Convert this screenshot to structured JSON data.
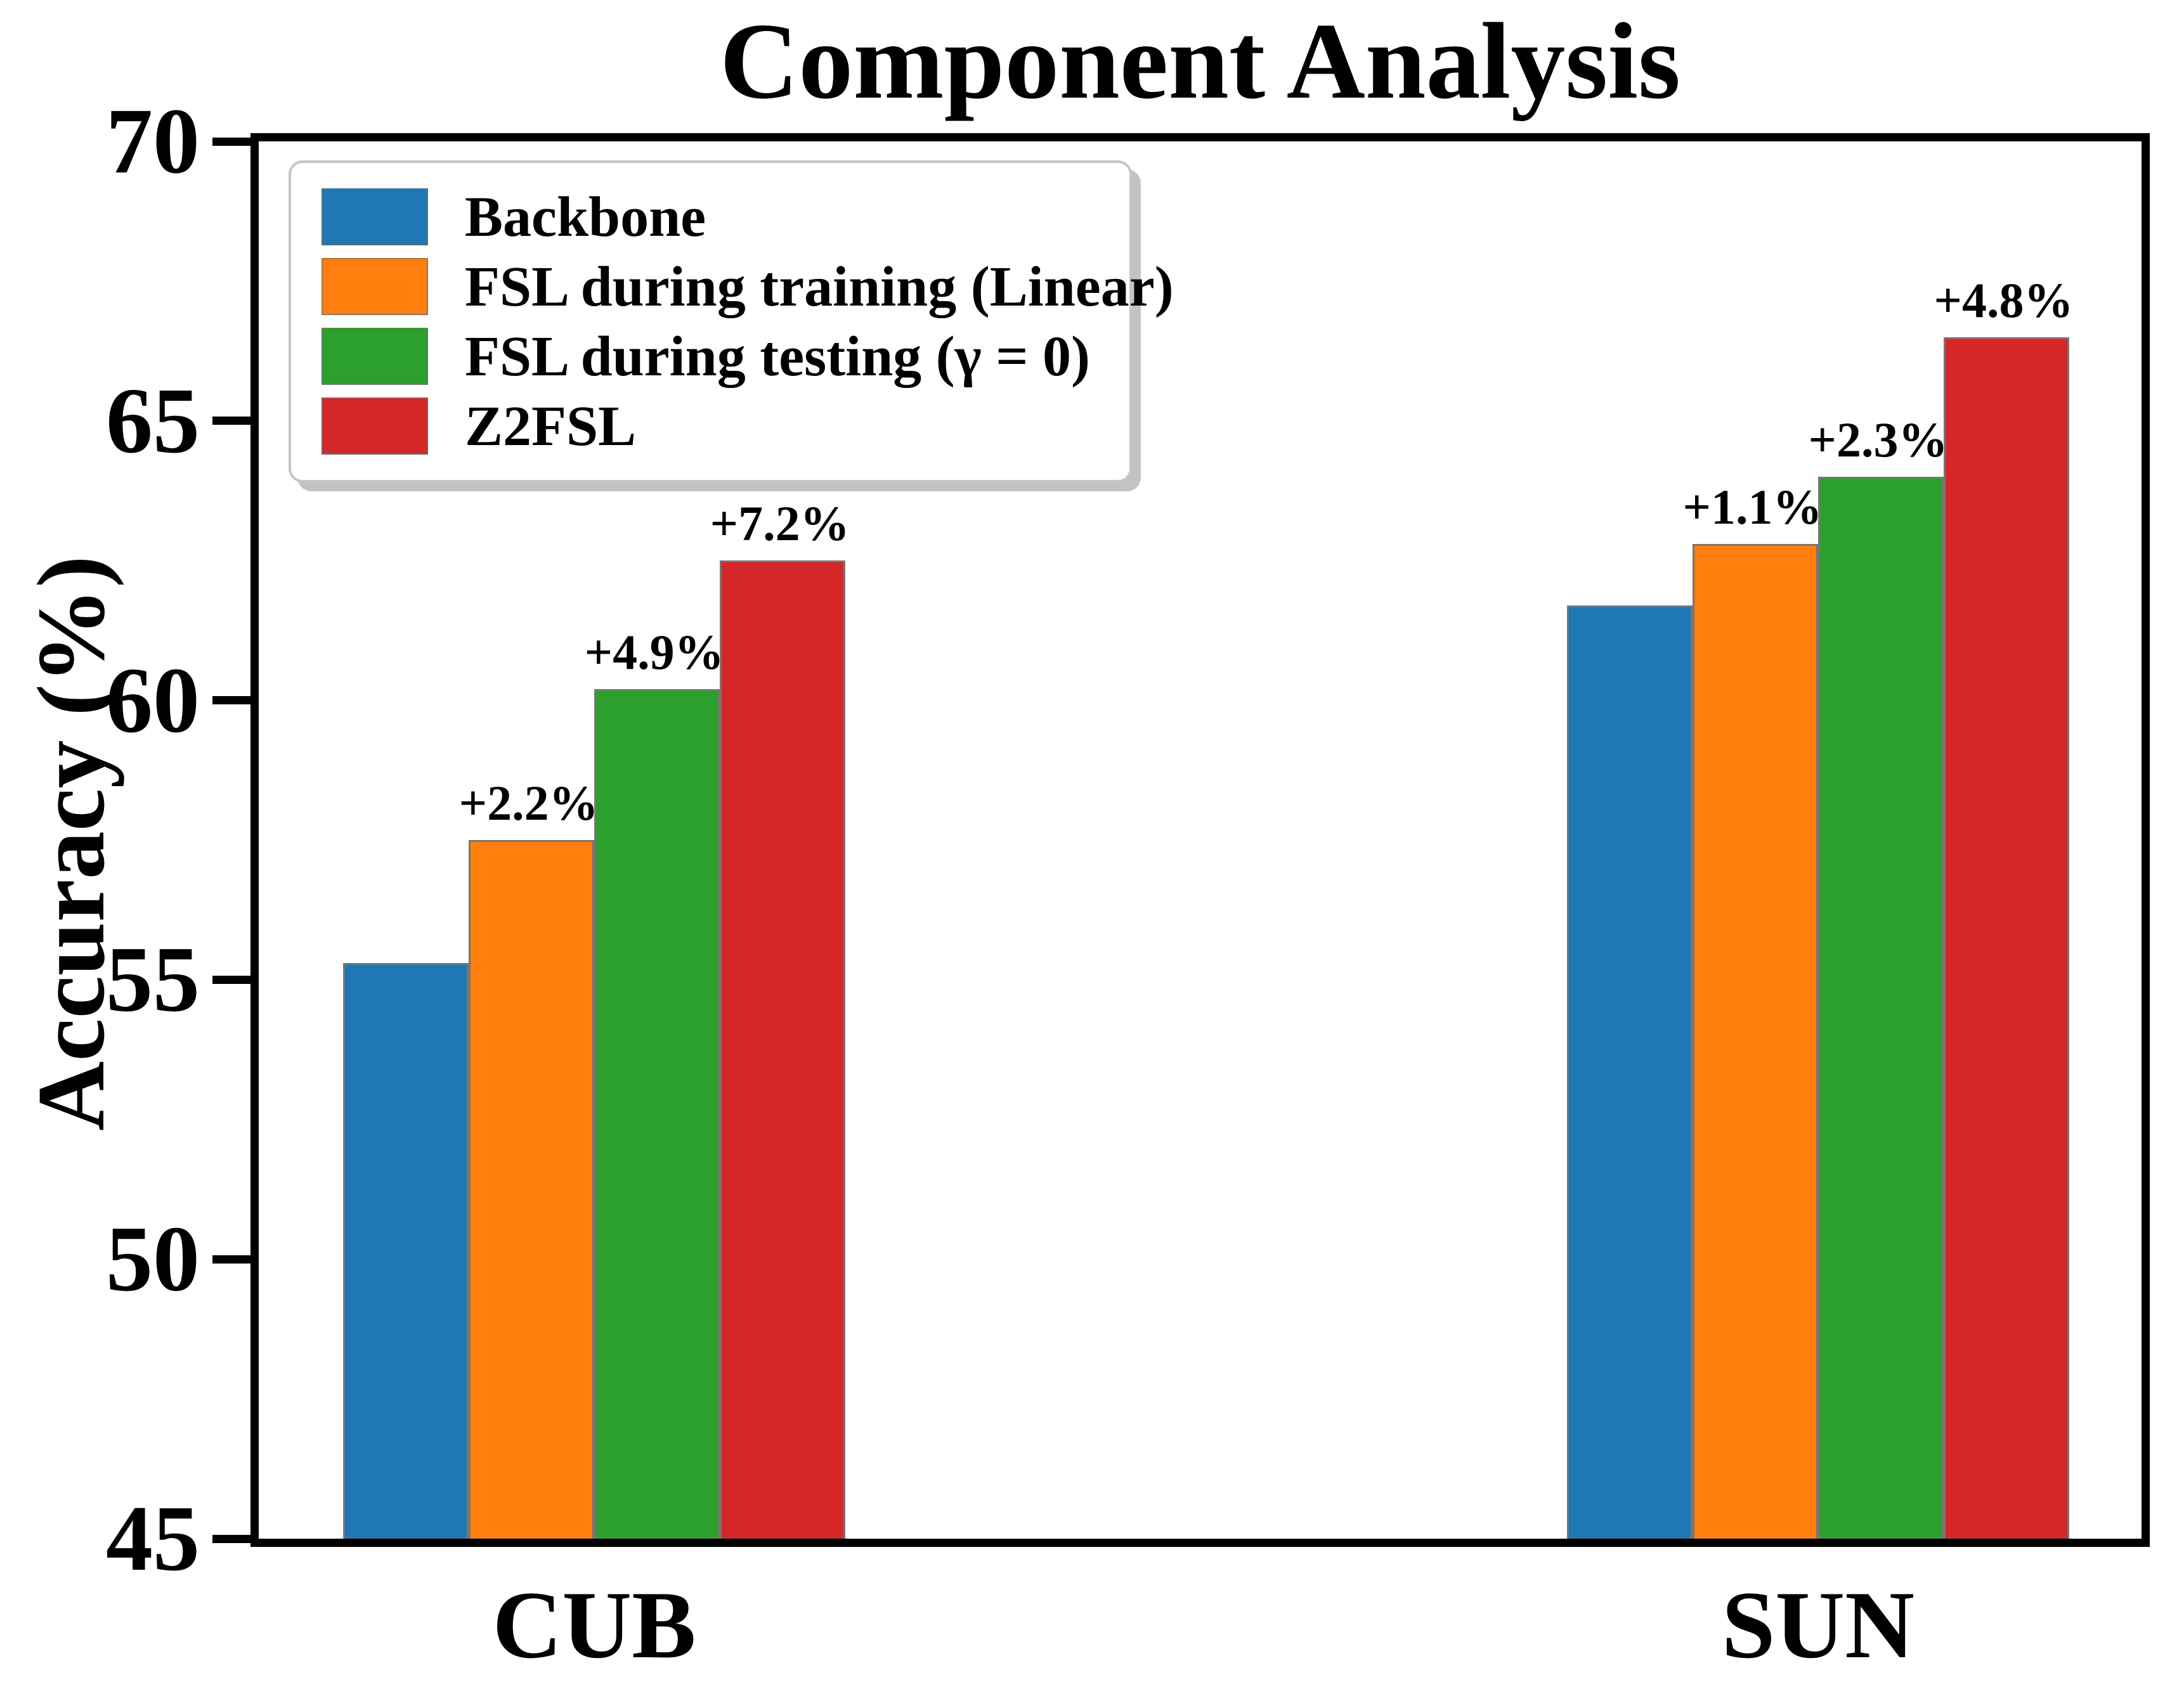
{
  "figure": {
    "title": "Component Analysis",
    "background_color": "#ffffff",
    "spine_color": "#000000"
  },
  "chart_data": {
    "type": "bar",
    "title": "Component Analysis",
    "xlabel": "",
    "ylabel": "Accuracy (%)",
    "categories": [
      "CUB",
      "SUN"
    ],
    "series": [
      {
        "name": "Backbone",
        "color": "#1f77b4",
        "values": [
          55.3,
          61.7
        ],
        "annotations": [
          "",
          ""
        ]
      },
      {
        "name": "FSL during training (Linear)",
        "color": "#ff7f0e",
        "values": [
          57.5,
          62.8
        ],
        "annotations": [
          "+2.2%",
          "+1.1%"
        ]
      },
      {
        "name": "FSL during testing (γ = 0)",
        "color": "#2ca02c",
        "values": [
          60.2,
          64.0
        ],
        "annotations": [
          "+4.9%",
          "+2.3%"
        ]
      },
      {
        "name": "Z2FSL",
        "color": "#d62728",
        "values": [
          62.5,
          66.5
        ],
        "annotations": [
          "+7.2%",
          "+4.8%"
        ]
      }
    ],
    "ylim": [
      45,
      70
    ],
    "yticks": [
      45,
      50,
      55,
      60,
      65,
      70
    ],
    "grid": false,
    "legend_position": "upper left",
    "bar_edge_color": "#767676",
    "annotation_color": "#000000"
  }
}
